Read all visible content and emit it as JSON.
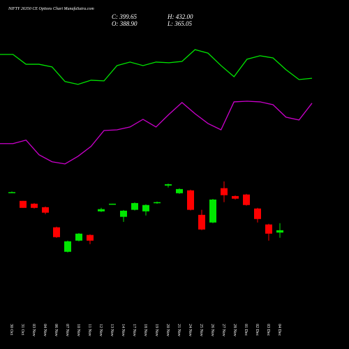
{
  "chart_data": {
    "type": "candlestick",
    "title": "NIFTY 26350  CE Options Chart MunafaSutra.com",
    "summary": {
      "close": "C: 399.65",
      "high": "H: 432.00",
      "open": "O: 388.90",
      "low": "L: 365.05"
    },
    "categories": [
      "30 Oct",
      "31 Oct",
      "03 Nov",
      "04 Nov",
      "06 Nov",
      "07 Nov",
      "10 Nov",
      "11 Nov",
      "12 Nov",
      "13 Nov",
      "14 Nov",
      "17 Nov",
      "18 Nov",
      "19 Nov",
      "20 Nov",
      "21 Nov",
      "24 Nov",
      "25 Nov",
      "26 Nov",
      "27 Nov",
      "28 Nov",
      "01 Dec",
      "02 Dec",
      "03 Dec",
      "04 Dec"
    ],
    "open": [
      574,
      534,
      521,
      505,
      413,
      301,
      352,
      378,
      486,
      518,
      461,
      493,
      486,
      524,
      604,
      569,
      582,
      470,
      435,
      592,
      556,
      563,
      499,
      426,
      388.9
    ],
    "high": [
      577,
      534,
      524,
      508,
      416,
      352,
      387,
      381,
      502,
      521,
      492,
      527,
      518,
      531,
      613,
      591,
      585,
      493,
      543,
      623,
      559,
      566,
      502,
      429,
      432.0
    ],
    "low": [
      571,
      502,
      499,
      473,
      365,
      298,
      349,
      336,
      483,
      518,
      438,
      490,
      467,
      521,
      595,
      566,
      490,
      400,
      432,
      528,
      540,
      512,
      435,
      352,
      365.05
    ],
    "close": [
      574,
      502,
      502,
      480,
      368,
      349,
      384,
      352,
      496,
      521,
      489,
      524,
      515,
      528,
      610,
      588,
      493,
      403,
      540,
      560,
      544,
      515,
      451,
      384,
      399.65
    ],
    "up_color": "#00e600",
    "down_color": "#ff0000",
    "lines": [
      {
        "color": "#00e600",
        "values": [
          1204,
          1204,
          1159,
          1159,
          1147,
          1080,
          1067,
          1086,
          1083,
          1153,
          1169,
          1153,
          1169,
          1166,
          1172,
          1226,
          1210,
          1153,
          1102,
          1182,
          1198,
          1188,
          1134,
          1089,
          1095
        ]
      },
      {
        "color": "#cc00cc",
        "values": [
          796,
          796,
          812,
          745,
          713,
          703,
          738,
          783,
          856,
          859,
          872,
          907,
          872,
          930,
          984,
          933,
          888,
          859,
          987,
          990,
          987,
          974,
          917,
          904,
          981
        ]
      }
    ],
    "ylim": [
      0,
      1453
    ]
  }
}
